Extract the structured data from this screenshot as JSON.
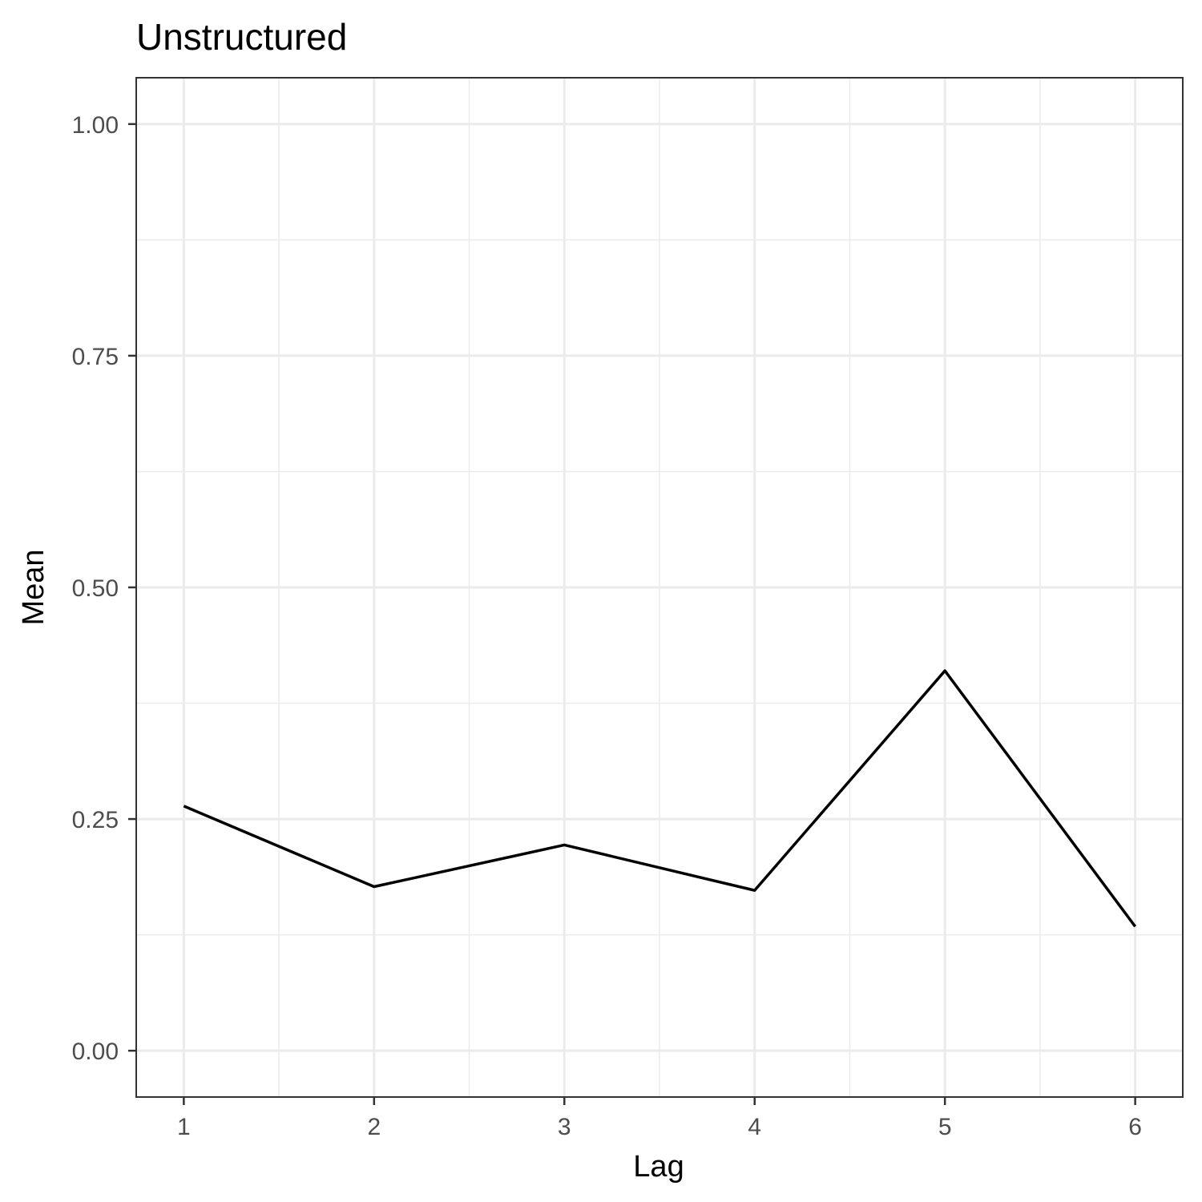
{
  "chart_data": {
    "type": "line",
    "title": "Unstructured",
    "xlabel": "Lag",
    "ylabel": "Mean",
    "x": [
      1,
      2,
      3,
      4,
      5,
      6
    ],
    "series": [
      {
        "values": [
          0.264,
          0.177,
          0.222,
          0.173,
          0.41,
          0.134
        ]
      }
    ],
    "xlim": [
      0.75,
      6.25
    ],
    "ylim": [
      -0.05,
      1.05
    ],
    "xticks": [
      1,
      2,
      3,
      4,
      5,
      6
    ],
    "xtick_labels": [
      "1",
      "2",
      "3",
      "4",
      "5",
      "6"
    ],
    "yticks": [
      0,
      0.25,
      0.5,
      0.75,
      1
    ],
    "ytick_labels": [
      "0.00",
      "0.25",
      "0.50",
      "0.75",
      "1.00"
    ],
    "grid": true,
    "legend": "none",
    "line_color": "#000000",
    "background": "#ffffff"
  }
}
